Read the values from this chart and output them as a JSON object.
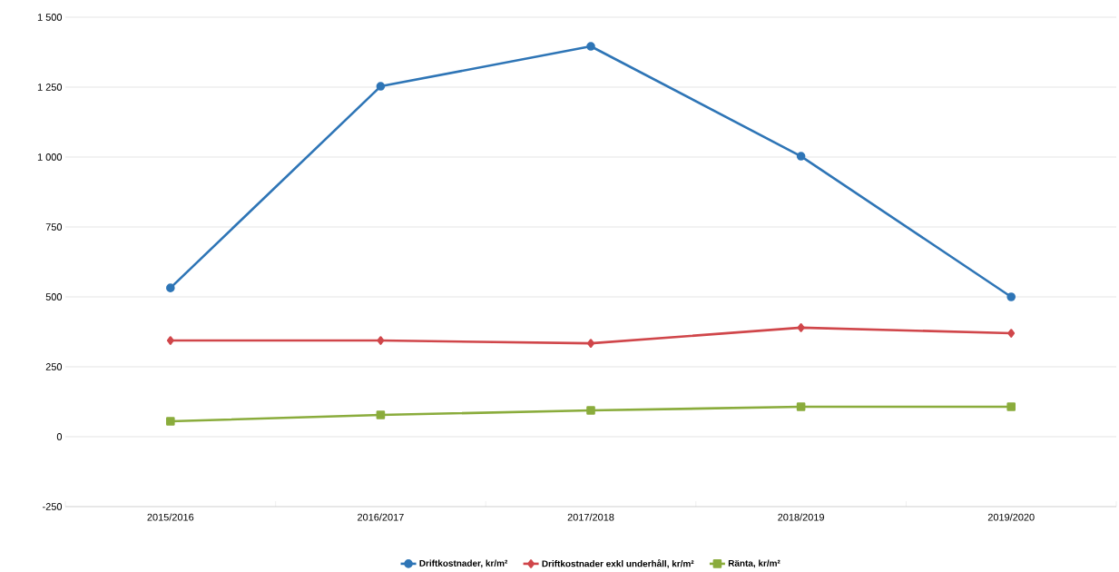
{
  "chart_data": {
    "type": "line",
    "categories": [
      "2015/2016",
      "2016/2017",
      "2017/2018",
      "2018/2019",
      "2019/2020"
    ],
    "series": [
      {
        "name": "Driftkostnader, kr/m²",
        "color": "#2e75b6",
        "marker": "circle",
        "values": [
          532,
          1253,
          1396,
          1003,
          500
        ]
      },
      {
        "name": "Driftkostnader exkl underhåll, kr/m²",
        "color": "#d0464a",
        "marker": "diamond",
        "values": [
          344,
          344,
          334,
          390,
          370
        ]
      },
      {
        "name": "Ränta, kr/m²",
        "color": "#8aac3c",
        "marker": "square",
        "values": [
          55,
          78,
          94,
          107,
          107
        ]
      }
    ],
    "ylim": [
      -250,
      1500
    ],
    "yticks": [
      -250,
      0,
      250,
      500,
      750,
      {
        "value": 1000,
        "label": "1 000"
      },
      {
        "value": 1250,
        "label": "1 250"
      },
      {
        "value": 1500,
        "label": "1 500"
      }
    ],
    "grid": "y",
    "legend": "bottom"
  }
}
